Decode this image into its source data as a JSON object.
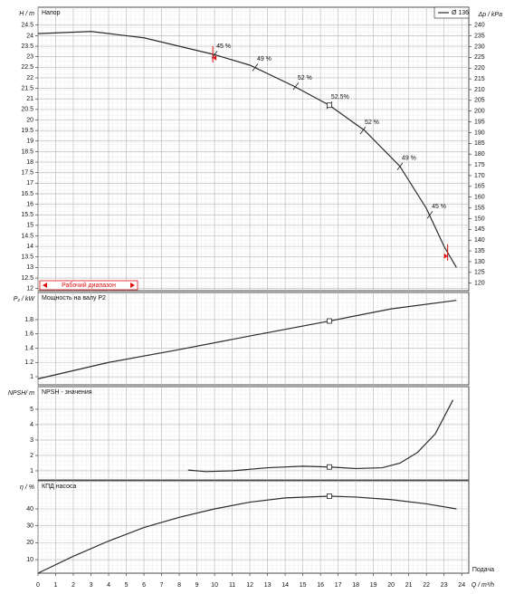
{
  "chart_data": [
    {
      "type": "line",
      "title": "Напор",
      "ylabel": "H / m",
      "y2label": "Δp / kPa",
      "xlim": [
        0,
        24.4
      ],
      "ylim": [
        11.9,
        25.35
      ],
      "yticks": [
        12,
        12.5,
        13,
        13.5,
        14,
        14.5,
        15,
        15.5,
        16,
        16.5,
        17,
        17.5,
        18,
        18.5,
        19,
        19.5,
        20,
        20.5,
        21,
        21.5,
        22,
        22.5,
        23,
        23.5,
        24,
        24.5
      ],
      "y2lim": [
        116.5,
        248.3
      ],
      "y2ticks": [
        120,
        125,
        130,
        135,
        140,
        145,
        150,
        155,
        160,
        165,
        170,
        175,
        180,
        185,
        190,
        195,
        200,
        205,
        210,
        215,
        220,
        225,
        230,
        235,
        240
      ],
      "grid": true,
      "legend": "upper right",
      "series": [
        {
          "name": "Ø 136",
          "color": "#2b2b2b",
          "x": [
            0,
            3,
            6,
            10,
            12,
            14.5,
            16.5,
            18.5,
            20.5,
            22,
            23,
            23.7
          ],
          "values": [
            24.1,
            24.2,
            23.9,
            23.1,
            22.6,
            21.6,
            20.7,
            19.5,
            17.8,
            15.8,
            14,
            13
          ]
        }
      ],
      "annotations": [
        {
          "x": 10,
          "y": 23.1,
          "label": "45 %"
        },
        {
          "x": 12.3,
          "y": 22.5,
          "label": "49 %"
        },
        {
          "x": 14.6,
          "y": 21.6,
          "label": "52 %"
        },
        {
          "x": 16.5,
          "y": 20.7,
          "label": "52.5%"
        },
        {
          "x": 18.4,
          "y": 19.5,
          "label": "52 %"
        },
        {
          "x": 20.5,
          "y": 17.8,
          "label": "49 %"
        },
        {
          "x": 22.2,
          "y": 15.5,
          "label": "45 %"
        }
      ],
      "operating_range": {
        "label": "Рабочий диапазон",
        "from": 9.9,
        "to": 23.2
      },
      "duty_point": {
        "x": 16.5,
        "y": 20.7
      }
    },
    {
      "type": "line",
      "title": "Мощность на валу P2",
      "ylabel": "P₂ / kW",
      "xlim": [
        0,
        24.4
      ],
      "ylim": [
        0.886,
        2.18
      ],
      "yticks": [
        1,
        1.2,
        1.4,
        1.6,
        1.8
      ],
      "grid": true,
      "series": [
        {
          "name": "P2",
          "color": "#2b2b2b",
          "x": [
            0,
            4,
            8,
            12,
            16.5,
            20,
            23.7
          ],
          "values": [
            0.97,
            1.2,
            1.38,
            1.57,
            1.78,
            1.95,
            2.07
          ]
        }
      ],
      "duty_point": {
        "x": 16.5,
        "y": 1.78
      }
    },
    {
      "type": "line",
      "title": "NPSH - значения",
      "ylabel": "NPSH/ m",
      "xlim": [
        0,
        24.4
      ],
      "ylim": [
        0.41,
        6.47
      ],
      "yticks": [
        1,
        2,
        3,
        4,
        5
      ],
      "grid": true,
      "series": [
        {
          "name": "NPSH",
          "color": "#2b2b2b",
          "x": [
            8.5,
            9.5,
            11,
            13,
            15,
            16.5,
            18,
            19.5,
            20.5,
            21.5,
            22.5,
            23.5
          ],
          "values": [
            1.05,
            0.95,
            1.0,
            1.2,
            1.3,
            1.25,
            1.15,
            1.2,
            1.5,
            2.2,
            3.4,
            5.6
          ]
        }
      ],
      "duty_point": {
        "x": 16.5,
        "y": 1.25
      }
    },
    {
      "type": "line",
      "title": "КПД насоса",
      "ylabel": "η / %",
      "xlabel": "Q / m³/h",
      "xcaption": "Подача",
      "xlim": [
        0,
        24.4
      ],
      "ylim": [
        2,
        56.6
      ],
      "yticks": [
        10,
        20,
        30,
        40
      ],
      "xticks": [
        0,
        1,
        2,
        3,
        4,
        5,
        6,
        7,
        8,
        9,
        10,
        11,
        12,
        13,
        14,
        15,
        16,
        17,
        18,
        19,
        20,
        21,
        22,
        23,
        24
      ],
      "grid": true,
      "series": [
        {
          "name": "η",
          "color": "#2b2b2b",
          "x": [
            0,
            2,
            4,
            6,
            8,
            10,
            12,
            14,
            16.5,
            18,
            20,
            22,
            23.7
          ],
          "values": [
            2,
            12,
            21,
            29,
            35,
            40,
            44,
            46.5,
            47.5,
            47,
            45.5,
            43,
            40
          ]
        }
      ],
      "duty_point": {
        "x": 16.5,
        "y": 47.5
      }
    }
  ]
}
